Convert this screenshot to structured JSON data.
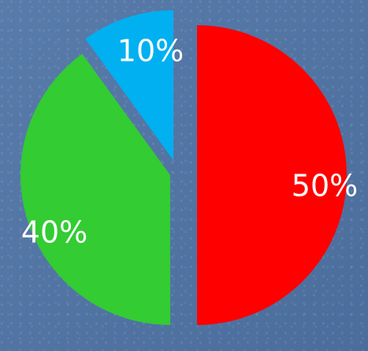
{
  "chart_data": {
    "type": "pie",
    "slices": [
      {
        "label": "50%",
        "value": 50,
        "color": "#ff0000"
      },
      {
        "label": "40%",
        "value": 40,
        "color": "#33cc33"
      },
      {
        "label": "10%",
        "value": 10,
        "color": "#00b0f0"
      }
    ]
  },
  "background": {
    "color": "#4f74a6"
  }
}
